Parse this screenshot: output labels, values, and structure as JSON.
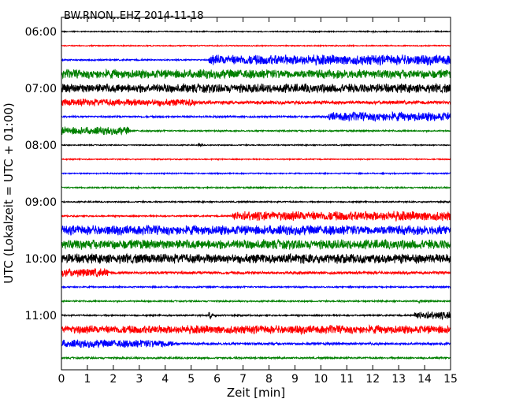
{
  "chart_data": {
    "type": "line",
    "title": "BW.RNON..EHZ 2014-11-18",
    "xlabel": "Zeit  [min]",
    "ylabel": "UTC (Lokalzeit = UTC + 01:00)",
    "xlim": [
      0,
      15
    ],
    "x_ticks": [
      "0",
      "1",
      "2",
      "3",
      "4",
      "5",
      "6",
      "7",
      "8",
      "9",
      "10",
      "11",
      "12",
      "13",
      "14",
      "15"
    ],
    "y_ticks": [
      "06:00",
      "07:00",
      "08:00",
      "09:00",
      "10:00",
      "11:00"
    ],
    "grid": false,
    "trace_colors": [
      "#000000",
      "#ff0000",
      "#0000ff",
      "#008000"
    ],
    "series": [
      {
        "start": "06:00",
        "color": "black",
        "amp": 0.18,
        "events": [
          [
            9.7,
            0.6
          ],
          [
            12.0,
            0.6
          ]
        ]
      },
      {
        "start": "06:15",
        "color": "red",
        "amp": 0.18,
        "events": []
      },
      {
        "start": "06:30",
        "color": "blue",
        "amp": 0.25,
        "events": [],
        "steps": [
          [
            5.7,
            1.7
          ]
        ]
      },
      {
        "start": "06:45",
        "color": "green",
        "amp": 1.5,
        "events": []
      },
      {
        "start": "07:00",
        "color": "black",
        "amp": 1.5,
        "events": []
      },
      {
        "start": "07:15",
        "color": "red",
        "amp": 1.2,
        "events": [
          [
            4.9,
            1.8
          ]
        ],
        "steps": [
          [
            5.2,
            0.6
          ]
        ]
      },
      {
        "start": "07:30",
        "color": "blue",
        "amp": 0.3,
        "events": [],
        "steps": [
          [
            10.3,
            1.5
          ]
        ]
      },
      {
        "start": "07:45",
        "color": "green",
        "amp": 1.3,
        "events": [
          [
            2.2,
            1.6
          ]
        ],
        "steps": [
          [
            2.6,
            0.25
          ]
        ]
      },
      {
        "start": "08:00",
        "color": "black",
        "amp": 0.18,
        "events": [
          [
            5.3,
            0.8
          ]
        ]
      },
      {
        "start": "08:15",
        "color": "red",
        "amp": 0.18,
        "events": []
      },
      {
        "start": "08:30",
        "color": "blue",
        "amp": 0.2,
        "events": []
      },
      {
        "start": "08:45",
        "color": "green",
        "amp": 0.25,
        "events": [
          [
            2.9,
            0.7
          ]
        ]
      },
      {
        "start": "09:00",
        "color": "black",
        "amp": 0.22,
        "events": []
      },
      {
        "start": "09:15",
        "color": "red",
        "amp": 0.25,
        "events": [
          [
            10.2,
            1.3
          ]
        ],
        "steps": [
          [
            6.6,
            1.6
          ]
        ]
      },
      {
        "start": "09:30",
        "color": "blue",
        "amp": 1.6,
        "events": []
      },
      {
        "start": "09:45",
        "color": "green",
        "amp": 1.6,
        "events": []
      },
      {
        "start": "10:00",
        "color": "black",
        "amp": 1.6,
        "events": []
      },
      {
        "start": "10:15",
        "color": "red",
        "amp": 1.4,
        "events": [
          [
            1.5,
            1.8
          ]
        ],
        "steps": [
          [
            1.8,
            0.45
          ]
        ]
      },
      {
        "start": "10:30",
        "color": "blue",
        "amp": 0.25,
        "events": [
          [
            11.1,
            0.6
          ]
        ]
      },
      {
        "start": "10:45",
        "color": "green",
        "amp": 0.25,
        "events": [
          [
            13.8,
            0.9
          ]
        ]
      },
      {
        "start": "11:00",
        "color": "black",
        "amp": 0.25,
        "events": [
          [
            5.7,
            1.8
          ]
        ],
        "steps": [
          [
            13.6,
            1.3
          ]
        ]
      },
      {
        "start": "11:15",
        "color": "red",
        "amp": 1.4,
        "events": []
      },
      {
        "start": "11:30",
        "color": "blue",
        "amp": 1.3,
        "events": [
          [
            3.9,
            1.8
          ]
        ],
        "steps": [
          [
            4.3,
            0.4
          ]
        ]
      },
      {
        "start": "11:45",
        "color": "green",
        "amp": 0.3,
        "events": [
          [
            7.2,
            0.6
          ]
        ]
      }
    ]
  }
}
